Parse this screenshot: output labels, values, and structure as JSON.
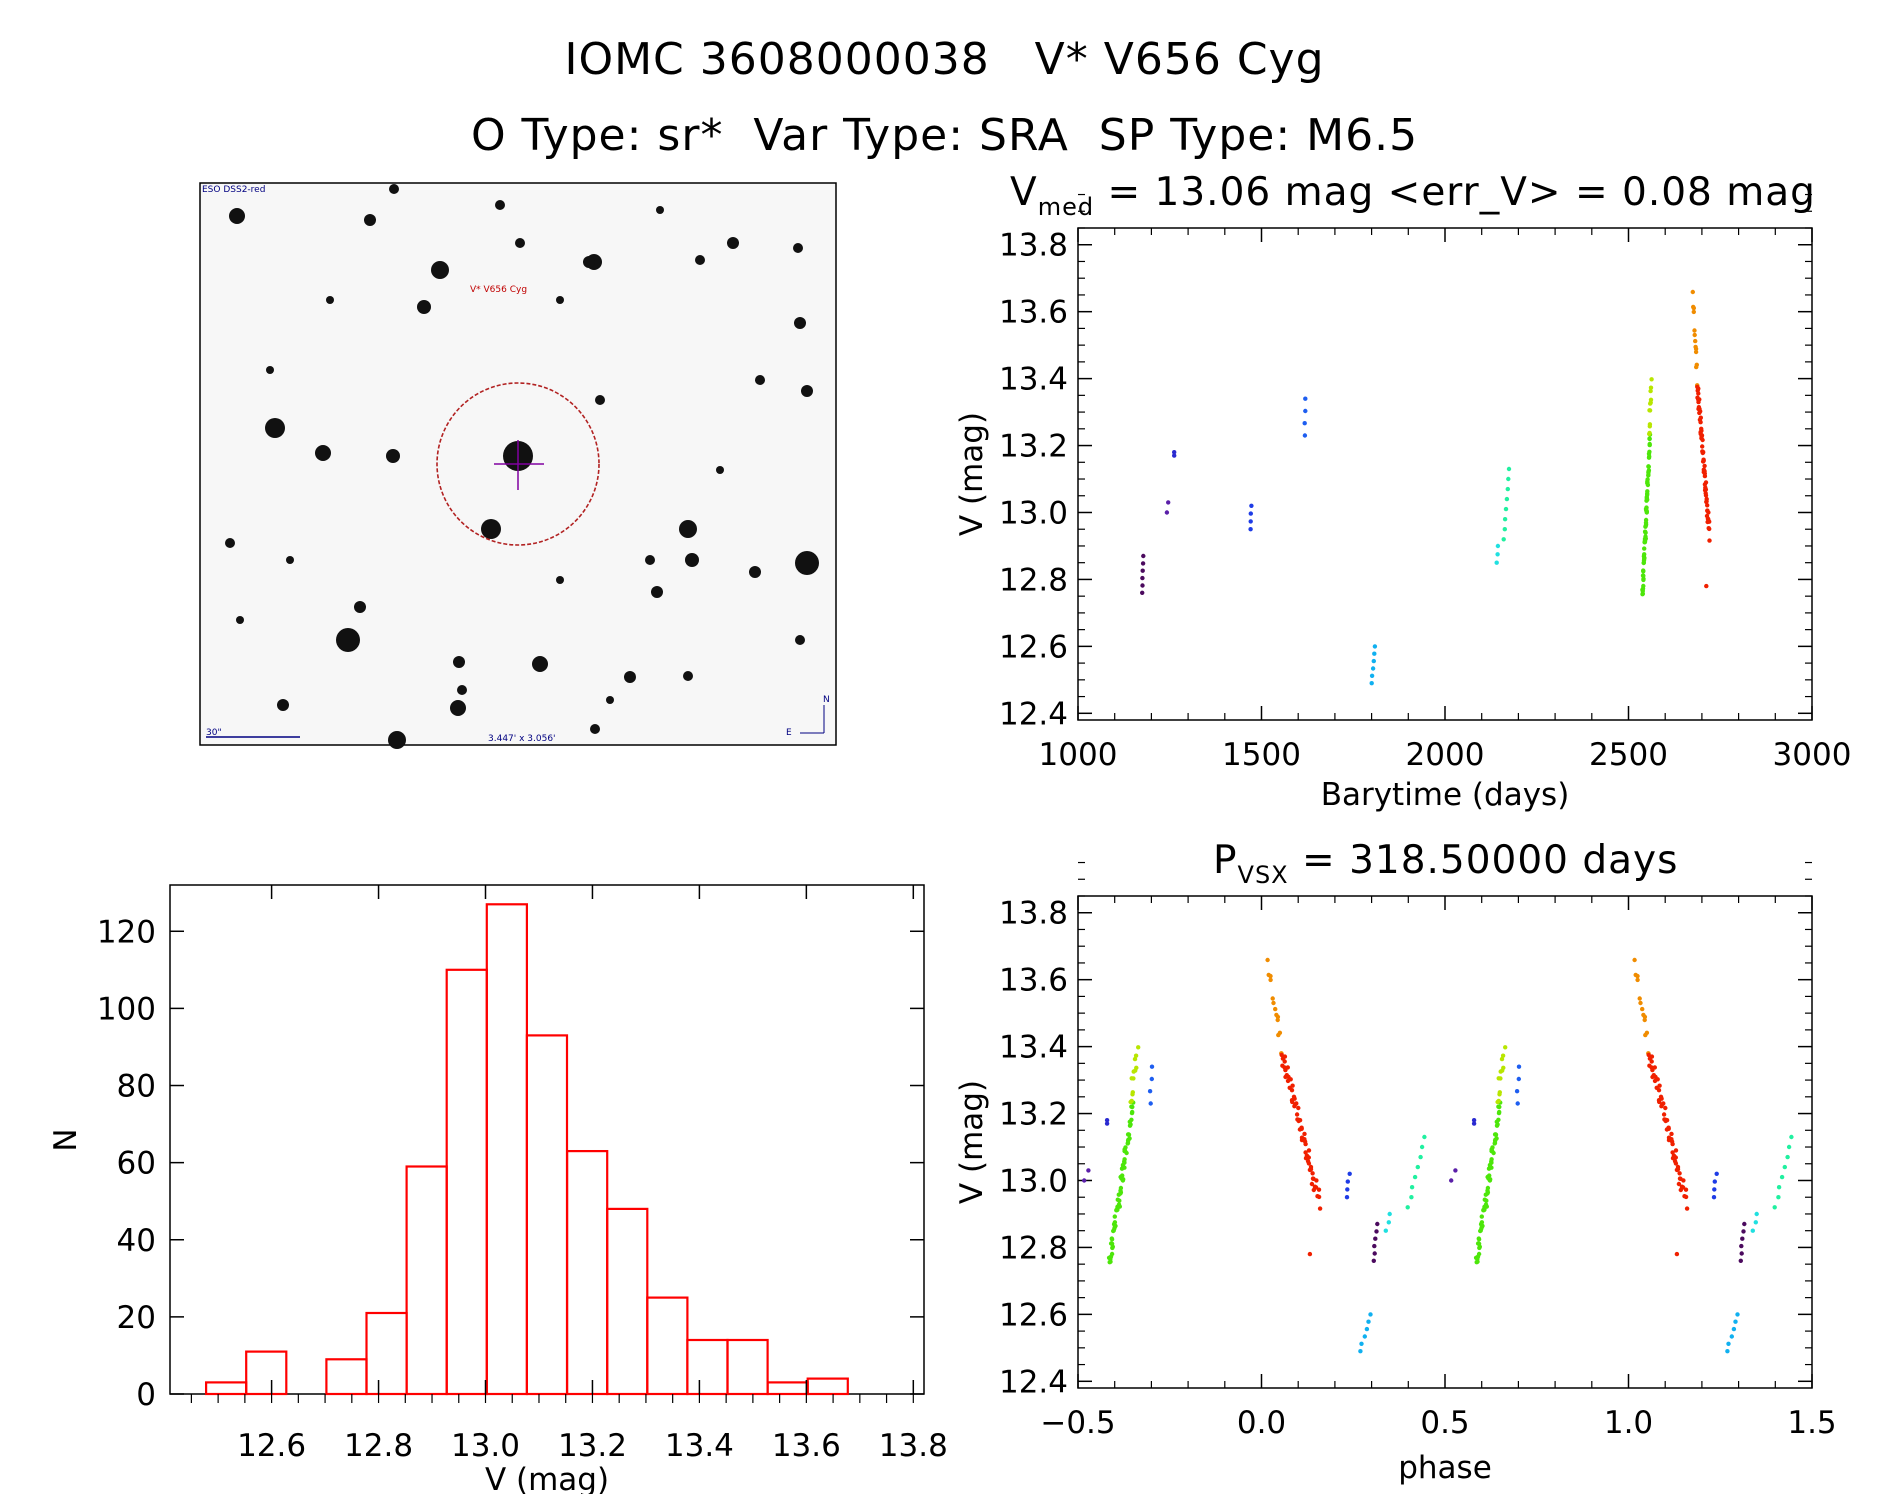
{
  "header": {
    "line1": "IOMC 3608000038   V* V656 Cyg",
    "line2": "O Type: sr*  Var Type: SRA  SP Type: M6.5"
  },
  "finder": {
    "survey_label": "ESO DSS2-red",
    "target_label": "V* V656 Cyg",
    "scale_label": "30\"",
    "fov_label": "3.447' x 3.056'",
    "compass_n": "N",
    "compass_e": "E"
  },
  "colors": {
    "histogram": "#ff0000",
    "finder_circle": "#b22222",
    "finder_cross": "#8000a0",
    "finder_label": "#c00000",
    "finder_text": "#000080"
  },
  "chart_data": [
    {
      "id": "lightcurve",
      "type": "scatter",
      "title_main": "V",
      "title_sub": "med",
      "title_rest": " = 13.06 mag <err_V> = 0.08 mag",
      "xlabel": "Barytime (days)",
      "ylabel": "V (mag)",
      "xlim": [
        1000,
        3000
      ],
      "ylim": [
        13.85,
        12.38
      ],
      "xticks": [
        "1000",
        "1500",
        "2000",
        "2500",
        "3000"
      ],
      "yticks": [
        "12.4",
        "12.6",
        "12.8",
        "13.0",
        "13.2",
        "13.4",
        "13.6",
        "13.8"
      ],
      "segments": [
        {
          "t0": 1175,
          "t1": 1178,
          "v0": 12.76,
          "v1": 12.87,
          "n": 6,
          "color": "#4b0a5e"
        },
        {
          "t0": 1243,
          "t1": 1245,
          "v0": 13.0,
          "v1": 13.03,
          "n": 2,
          "color": "#5a1fa8"
        },
        {
          "t0": 1262,
          "t1": 1262,
          "v0": 13.17,
          "v1": 13.18,
          "n": 2,
          "color": "#2a2ad0"
        },
        {
          "t0": 1470,
          "t1": 1472,
          "v0": 12.95,
          "v1": 13.02,
          "n": 4,
          "color": "#1e3ce6"
        },
        {
          "t0": 1618,
          "t1": 1620,
          "v0": 13.23,
          "v1": 13.34,
          "n": 4,
          "color": "#1e5ef0"
        },
        {
          "t0": 1800,
          "t1": 1810,
          "v0": 12.49,
          "v1": 12.6,
          "n": 6,
          "color": "#10b0f0"
        },
        {
          "t0": 2140,
          "t1": 2145,
          "v0": 12.85,
          "v1": 12.9,
          "n": 3,
          "color": "#20e0e0"
        },
        {
          "t0": 2160,
          "t1": 2175,
          "v0": 12.92,
          "v1": 13.13,
          "n": 8,
          "color": "#20f0a0"
        },
        {
          "t0": 2538,
          "t1": 2558,
          "v0": 12.76,
          "v1": 13.22,
          "n": 70,
          "color": "#4de60a"
        },
        {
          "t0": 2556,
          "t1": 2562,
          "v0": 13.22,
          "v1": 13.39,
          "n": 12,
          "color": "#b8e600"
        },
        {
          "t0": 2676,
          "t1": 2688,
          "v0": 13.65,
          "v1": 13.38,
          "n": 14,
          "color": "#f08c00"
        },
        {
          "t0": 2688,
          "t1": 2720,
          "v0": 13.38,
          "v1": 12.94,
          "n": 60,
          "color": "#f02000"
        },
        {
          "t0": 2712,
          "t1": 2712,
          "v0": 12.78,
          "v1": 12.78,
          "n": 1,
          "color": "#f02000"
        }
      ]
    },
    {
      "id": "phased",
      "type": "scatter",
      "title_main": "P",
      "title_sub": "VSX",
      "title_rest": " = 318.50000 days",
      "xlabel": "phase",
      "ylabel": "V (mag)",
      "xlim": [
        -0.5,
        1.5
      ],
      "ylim": [
        13.85,
        12.38
      ],
      "period_days": 318.5,
      "epoch_days": 2670,
      "xticks": [
        "−0.5",
        "0.0",
        "0.5",
        "1.0",
        "1.5"
      ],
      "yticks": [
        "12.4",
        "12.6",
        "12.8",
        "13.0",
        "13.2",
        "13.4",
        "13.6",
        "13.8"
      ]
    },
    {
      "id": "histogram",
      "type": "bar",
      "xlabel": "V (mag)",
      "ylabel": "N",
      "xlim": [
        12.41,
        13.82
      ],
      "ylim": [
        0,
        132
      ],
      "bin_width": 0.075,
      "bin_centers": [
        12.515,
        12.59,
        12.665,
        12.74,
        12.815,
        12.89,
        12.965,
        13.04,
        13.115,
        13.19,
        13.265,
        13.34,
        13.415,
        13.49,
        13.565,
        13.64
      ],
      "values": [
        3,
        11,
        0,
        9,
        21,
        59,
        110,
        127,
        93,
        63,
        48,
        25,
        14,
        14,
        3,
        4
      ],
      "xticks": [
        "12.6",
        "12.8",
        "13.0",
        "13.2",
        "13.4",
        "13.6",
        "13.8"
      ],
      "yticks": [
        "0",
        "20",
        "40",
        "60",
        "80",
        "100",
        "120"
      ]
    }
  ]
}
